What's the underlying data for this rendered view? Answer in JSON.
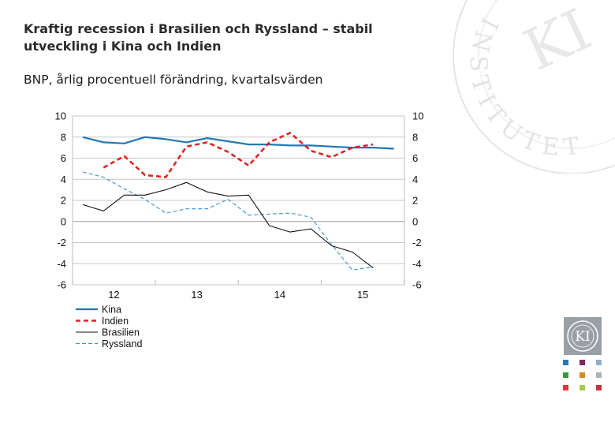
{
  "header": {
    "title": "Kraftig recession i Brasilien och Ryssland – stabil utveckling i Kina och Indien",
    "subtitle": "BNP, årlig procentuell förändring, kvartalsvärden"
  },
  "branding": {
    "watermark_text": "INSTITUTET",
    "logo_text": "KI"
  },
  "colors": {
    "kina": "#2277b4",
    "indien": "#e02424",
    "brasilien": "#111111",
    "ryssland": "#3b8fd0",
    "grid": "#c8c8c8",
    "square_colors": [
      "#2a78b8",
      "#7a2a5e",
      "#8fb0cc",
      "#3c9a3c",
      "#d88a1c",
      "#a8b4be",
      "#d83a3a",
      "#a6cc4a",
      "#c8323a"
    ]
  },
  "chart_data": {
    "type": "line",
    "x_tick_labels": [
      "12",
      "13",
      "14",
      "15"
    ],
    "y_ticks": [
      10,
      8,
      6,
      4,
      2,
      0,
      -2,
      -4,
      -6
    ],
    "ylim": [
      -6,
      10
    ],
    "quarters": [
      "2011Q4",
      "2012Q1",
      "2012Q2",
      "2012Q3",
      "2012Q4",
      "2013Q1",
      "2013Q2",
      "2013Q3",
      "2013Q4",
      "2014Q1",
      "2014Q2",
      "2014Q3",
      "2014Q4",
      "2015Q1",
      "2015Q2",
      "2015Q3"
    ],
    "series": [
      {
        "name": "Kina",
        "style": "solid",
        "width": 2.2,
        "values": [
          8.0,
          7.5,
          7.4,
          8.0,
          7.8,
          7.5,
          7.9,
          7.6,
          7.3,
          7.3,
          7.2,
          7.2,
          7.1,
          7.0,
          7.0,
          6.9
        ]
      },
      {
        "name": "Indien",
        "style": "dashed",
        "width": 2.6,
        "values": [
          null,
          5.1,
          6.2,
          4.4,
          4.2,
          7.1,
          7.5,
          6.6,
          5.3,
          7.5,
          8.4,
          6.7,
          6.1,
          7.0,
          7.3,
          null
        ]
      },
      {
        "name": "Brasilien",
        "style": "solid",
        "width": 1.1,
        "values": [
          1.6,
          1.0,
          2.5,
          2.5,
          3.0,
          3.7,
          2.8,
          2.4,
          2.5,
          -0.4,
          -1.0,
          -0.7,
          -2.3,
          -2.9,
          -4.4,
          null
        ]
      },
      {
        "name": "Ryssland",
        "style": "dashed-thin",
        "width": 1.1,
        "values": [
          4.7,
          4.2,
          3.1,
          2.1,
          0.8,
          1.2,
          1.2,
          2.1,
          0.6,
          0.7,
          0.8,
          0.4,
          -2.2,
          -4.6,
          -4.3,
          null
        ]
      }
    ],
    "grid": true,
    "legend_position": "bottom-left"
  }
}
